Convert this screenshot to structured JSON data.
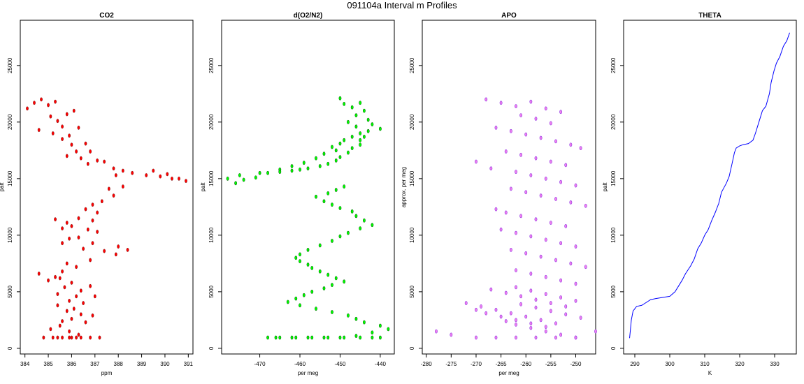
{
  "page_title": "091104a   Interval m Profiles",
  "chart_data": [
    {
      "type": "scatter",
      "title": "CO2",
      "xlabel": "ppm",
      "ylabel": "palt",
      "xlim": [
        383.8,
        391.2
      ],
      "ylim": [
        -500,
        29000
      ],
      "xticks": [
        384,
        385,
        386,
        387,
        388,
        389,
        390,
        391
      ],
      "yticks": [
        0,
        5000,
        10000,
        15000,
        20000,
        25000
      ],
      "marker_color": "#8B1A1A",
      "fill_color": "#ff0000",
      "series": [
        {
          "x": [
            384.1,
            384.4,
            384.7,
            385.0,
            385.3,
            385.1,
            385.4,
            385.8,
            386.1,
            385.6,
            385.2,
            384.6,
            385.6,
            385.9,
            386.3,
            386.0,
            386.6,
            386.2,
            385.8,
            386.8,
            387.1,
            386.4,
            386.7,
            387.4,
            387.8,
            388.2,
            387.9,
            388.6,
            389.2,
            389.8,
            390.3,
            390.6,
            390.9,
            390.1,
            389.5,
            388.2,
            387.6,
            387.8,
            387.3,
            386.9,
            387.1,
            386.6,
            386.3,
            386.9,
            385.8,
            385.3,
            385.6,
            386.0,
            386.7,
            387.1,
            385.9,
            386.3,
            385.6,
            386.9,
            387.4,
            387.9,
            388.4,
            388.0,
            386.5,
            386.8,
            385.8,
            386.2,
            385.6,
            385.3,
            384.6,
            385.0,
            385.5,
            385.7,
            386.0,
            386.4,
            386.8,
            385.4,
            386.2,
            387.0,
            385.9,
            386.5,
            385.4,
            385.8,
            386.1,
            386.4,
            386.9,
            385.6,
            386.0,
            386.6,
            385.5,
            385.1,
            385.9,
            386.3,
            384.8,
            385.2,
            385.6,
            386.0,
            386.4,
            386.8,
            387.2,
            385.4,
            385.9,
            386.2
          ],
          "y": [
            21200,
            21700,
            22000,
            21500,
            21800,
            20500,
            20100,
            20700,
            21000,
            19600,
            19000,
            19300,
            18500,
            18800,
            19500,
            18000,
            18100,
            17400,
            17000,
            17400,
            16600,
            16800,
            16300,
            16500,
            15900,
            15700,
            15300,
            15500,
            15300,
            15200,
            15000,
            15000,
            14800,
            15400,
            15700,
            14300,
            14100,
            13500,
            13000,
            12700,
            12000,
            12300,
            11500,
            11300,
            11100,
            11400,
            10600,
            10800,
            10500,
            10300,
            9700,
            9800,
            9300,
            9300,
            8600,
            8300,
            8700,
            9000,
            8800,
            7800,
            7500,
            7200,
            6800,
            6300,
            6600,
            6000,
            6200,
            5400,
            5800,
            5100,
            5500,
            4800,
            4600,
            4600,
            4200,
            4000,
            3800,
            3300,
            3500,
            3000,
            2900,
            2400,
            2600,
            2300,
            2000,
            1700,
            1500,
            1200,
            950,
            950,
            950,
            950,
            950,
            950,
            950,
            950,
            950,
            950
          ]
        }
      ]
    },
    {
      "type": "scatter",
      "title": "d(O2/N2)",
      "xlabel": "per meg",
      "ylabel": "palt",
      "xlim": [
        -479.5,
        -436.5
      ],
      "ylim": [
        -500,
        29000
      ],
      "xticks": [
        -470,
        -460,
        -450,
        -440
      ],
      "yticks": [
        0,
        5000,
        10000,
        15000,
        20000,
        25000
      ],
      "marker_color": "#006400",
      "fill_color": "#00ff00",
      "series": [
        {
          "x": [
            -450,
            -449,
            -447,
            -445,
            -444,
            -446,
            -443,
            -442,
            -440,
            -445,
            -447,
            -449,
            -450,
            -452,
            -451,
            -454,
            -456,
            -459,
            -462,
            -465,
            -468,
            -471,
            -474,
            -476,
            -478,
            -475,
            -470,
            -465,
            -462,
            -460,
            -458,
            -455,
            -453,
            -451,
            -450,
            -448,
            -447,
            -445,
            -445,
            -444,
            -443,
            -446,
            -448,
            -449,
            -451,
            -453,
            -456,
            -454,
            -452,
            -450,
            -447,
            -446,
            -444,
            -442,
            -445,
            -448,
            -450,
            -452,
            -455,
            -458,
            -460,
            -461,
            -460,
            -458,
            -457,
            -455,
            -453,
            -451,
            -449,
            -452,
            -454,
            -457,
            -459,
            -461,
            -463,
            -460,
            -456,
            -452,
            -448,
            -446,
            -444,
            -440,
            -438,
            -442,
            -446,
            -450,
            -454,
            -458,
            -462,
            -466,
            -468,
            -465,
            -461,
            -457,
            -453,
            -449,
            -445,
            -442,
            -440
          ],
          "y": [
            22100,
            21600,
            21300,
            21700,
            21000,
            20600,
            20200,
            19800,
            19400,
            19000,
            18700,
            18400,
            18100,
            17800,
            17500,
            17200,
            16800,
            16400,
            16100,
            15800,
            15500,
            15100,
            14900,
            14600,
            15000,
            15300,
            15500,
            15600,
            15700,
            15800,
            15900,
            16100,
            16300,
            16600,
            16900,
            17300,
            17700,
            18000,
            18400,
            18700,
            19200,
            19600,
            20000,
            14300,
            14000,
            13700,
            13400,
            13000,
            12700,
            12400,
            12100,
            11700,
            11300,
            10900,
            10600,
            10200,
            9900,
            9500,
            9100,
            8700,
            8300,
            8000,
            7700,
            7400,
            7100,
            6800,
            6500,
            6200,
            5900,
            5600,
            5300,
            5000,
            4700,
            4400,
            4100,
            3800,
            3500,
            3200,
            2900,
            2600,
            2300,
            2000,
            1700,
            1400,
            1100,
            950,
            950,
            950,
            950,
            950,
            950,
            950,
            950,
            950,
            950,
            950,
            950,
            950,
            950
          ],
          "note": ""
        }
      ]
    },
    {
      "type": "scatter",
      "title": "APO",
      "xlabel": "per meg",
      "ylabel": "approx. per meg",
      "xlim": [
        -280.8,
        -246.0
      ],
      "ylim": [
        -500,
        29000
      ],
      "xticks": [
        -280,
        -275,
        -270,
        -265,
        -260,
        -255,
        -250
      ],
      "yticks": [
        0,
        5000,
        10000,
        15000,
        20000,
        25000
      ],
      "marker_color": "#8a2be2",
      "fill_color": "#ee82ee",
      "series": [
        {
          "x": [
            -268,
            -265,
            -262,
            -259,
            -256,
            -253,
            -261,
            -258,
            -255,
            -266,
            -263,
            -260,
            -257,
            -254,
            -251,
            -249,
            -264,
            -261,
            -258,
            -255,
            -252,
            -270,
            -267,
            -262,
            -259,
            -256,
            -253,
            -250,
            -263,
            -260,
            -257,
            -254,
            -251,
            -248,
            -266,
            -264,
            -261,
            -258,
            -255,
            -252,
            -265,
            -262,
            -259,
            -256,
            -253,
            -250,
            -263,
            -260,
            -257,
            -254,
            -251,
            -248,
            -262,
            -259,
            -256,
            -253,
            -250,
            -262,
            -259,
            -256,
            -253,
            -250,
            -261,
            -258,
            -255,
            -252,
            -249,
            -264,
            -262,
            -259,
            -256,
            -253,
            -250,
            -267,
            -264,
            -261,
            -258,
            -255,
            -252,
            -270,
            -268,
            -265,
            -262,
            -259,
            -256,
            -272,
            -269,
            -266,
            -263,
            -260,
            -257,
            -254,
            -278,
            -275,
            -270,
            -266,
            -262,
            -258,
            -254,
            -250,
            -246
          ],
          "y": [
            22000,
            21700,
            21400,
            21800,
            21200,
            20900,
            20600,
            20300,
            19900,
            19500,
            19200,
            18900,
            18600,
            18300,
            18000,
            17700,
            17400,
            17100,
            16800,
            16500,
            16200,
            16500,
            15900,
            15600,
            15300,
            15000,
            14700,
            14400,
            14100,
            13800,
            13500,
            13200,
            12900,
            12600,
            12300,
            12000,
            11700,
            11400,
            11100,
            10800,
            10500,
            10200,
            9900,
            9600,
            9300,
            9000,
            8700,
            8400,
            8100,
            7800,
            7500,
            7200,
            6900,
            6600,
            6300,
            6000,
            5700,
            5400,
            5100,
            4800,
            4500,
            4200,
            3900,
            3600,
            3300,
            3000,
            2700,
            2400,
            2100,
            1800,
            1500,
            1200,
            950,
            5200,
            4900,
            4600,
            4300,
            4000,
            3700,
            3400,
            3100,
            2800,
            2500,
            2200,
            1900,
            4000,
            3700,
            3400,
            3100,
            2800,
            2500,
            2200,
            1500,
            1200,
            950,
            950,
            950,
            950,
            950,
            950,
            1500
          ]
        }
      ]
    },
    {
      "type": "line",
      "title": "THETA",
      "xlabel": "K",
      "ylabel": "palt",
      "xlim": [
        286.8,
        336.2
      ],
      "ylim": [
        -500,
        29000
      ],
      "xticks": [
        290,
        300,
        310,
        320,
        330
      ],
      "yticks": [
        0,
        5000,
        10000,
        15000,
        20000,
        25000
      ],
      "line_color": "#0000ff",
      "series": [
        {
          "x": [
            288.5,
            288.7,
            289.0,
            289.5,
            290.5,
            292.0,
            293.5,
            294.5,
            296.0,
            298.0,
            300.0,
            301.5,
            302.5,
            303.5,
            304.5,
            306.0,
            307.0,
            308.0,
            309.0,
            310.0,
            311.0,
            312.0,
            313.0,
            314.0,
            314.8,
            315.5,
            316.2,
            317.0,
            317.8,
            318.5,
            319.0,
            319.5,
            320.0,
            321.0,
            322.5,
            323.8,
            324.5,
            325.5,
            326.5,
            327.5,
            328.5,
            329.0,
            329.8,
            330.5,
            331.5,
            332.5,
            333.5,
            334.3
          ],
          "y": [
            900,
            1500,
            2500,
            3300,
            3700,
            3800,
            4100,
            4300,
            4400,
            4500,
            4600,
            5000,
            5500,
            6000,
            6600,
            7300,
            7900,
            8800,
            9300,
            10000,
            10500,
            11300,
            12000,
            12800,
            13800,
            14200,
            14600,
            15200,
            16300,
            17300,
            17700,
            17800,
            17900,
            18000,
            18100,
            18400,
            19000,
            20000,
            21000,
            21400,
            22500,
            23500,
            24500,
            25200,
            25800,
            26700,
            27200,
            27900
          ]
        }
      ]
    }
  ]
}
